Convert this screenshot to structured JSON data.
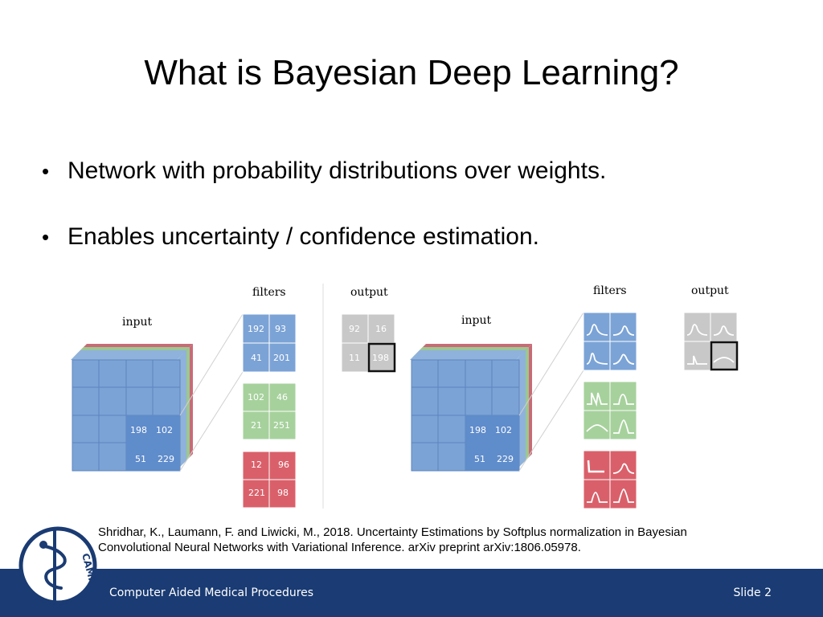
{
  "slide": {
    "title": "What is Bayesian Deep Learning?",
    "bullets": [
      "Network with probability distributions over weights.",
      "Enables uncertainty / confidence estimation."
    ],
    "citation_line1": "Shridhar, K., Laumann, F. and Liwicki, M., 2018. Uncertainty Estimations by Softplus normalization in Bayesian",
    "citation_line2": "Convolutional Neural Networks with Variational Inference. arXiv preprint arXiv:1806.05978.",
    "footer_left": "Computer Aided Medical Procedures",
    "footer_right": "Slide 2",
    "logo_text": "CAMP",
    "logo_icon": "caduceus-icon"
  },
  "figure": {
    "left_panel": {
      "input_label": "input",
      "filters_label": "filters",
      "output_label": "output",
      "input_values": [
        "198",
        "102",
        "51",
        "229"
      ],
      "filter_blue": [
        "192",
        "93",
        "41",
        "201"
      ],
      "filter_green": [
        "102",
        "46",
        "21",
        "251"
      ],
      "filter_red": [
        "12",
        "96",
        "221",
        "98"
      ],
      "output_values": [
        "92",
        "16",
        "11",
        "198"
      ]
    },
    "right_panel": {
      "input_label": "input",
      "filters_label": "filters",
      "output_label": "output",
      "input_values": [
        "198",
        "102",
        "51",
        "229"
      ]
    }
  },
  "colors": {
    "footer": "#1a3b73",
    "blue": "#7ba3d6",
    "green": "#a6d19c",
    "red": "#d9606a",
    "gray": "#c8c8c8"
  }
}
